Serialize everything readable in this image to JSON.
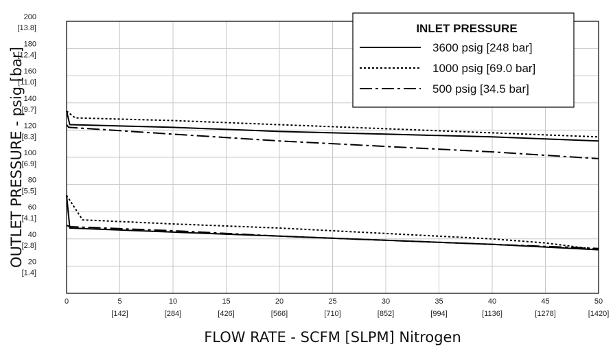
{
  "chart_data": {
    "type": "line",
    "xlabel": "FLOW RATE - SCFM [SLPM] Nitrogen",
    "ylabel": "OUTLET PRESSURE - psig [bar]",
    "xlim": [
      0,
      50
    ],
    "ylim": [
      0,
      200
    ],
    "x_ticks": [
      {
        "value": 0,
        "label": "0",
        "sub": ""
      },
      {
        "value": 5,
        "label": "5",
        "sub": "[142]"
      },
      {
        "value": 10,
        "label": "10",
        "sub": "[284]"
      },
      {
        "value": 15,
        "label": "15",
        "sub": "[426]"
      },
      {
        "value": 20,
        "label": "20",
        "sub": "[566]"
      },
      {
        "value": 25,
        "label": "25",
        "sub": "[710]"
      },
      {
        "value": 30,
        "label": "30",
        "sub": "[852]"
      },
      {
        "value": 35,
        "label": "35",
        "sub": "[994]"
      },
      {
        "value": 40,
        "label": "40",
        "sub": "[1136]"
      },
      {
        "value": 45,
        "label": "45",
        "sub": "[1278]"
      },
      {
        "value": 50,
        "label": "50",
        "sub": "[1420]"
      }
    ],
    "y_ticks": [
      {
        "value": 20,
        "label": "20",
        "sub": "[1.4]"
      },
      {
        "value": 40,
        "label": "40",
        "sub": "[2.8]"
      },
      {
        "value": 60,
        "label": "60",
        "sub": "[4.1]"
      },
      {
        "value": 80,
        "label": "80",
        "sub": "[5.5]"
      },
      {
        "value": 100,
        "label": "100",
        "sub": "[6.9]"
      },
      {
        "value": 120,
        "label": "120",
        "sub": "[8.3]"
      },
      {
        "value": 140,
        "label": "140",
        "sub": "[9.7]"
      },
      {
        "value": 160,
        "label": "160",
        "sub": "[11.0]"
      },
      {
        "value": 180,
        "label": "180",
        "sub": "[12.4]"
      },
      {
        "value": 200,
        "label": "200",
        "sub": "[13.8]"
      }
    ],
    "grid": true,
    "legend": {
      "title": "INLET PRESSURE",
      "position": "top-right",
      "entries": [
        {
          "label": "3600 psig [248 bar]",
          "style": "solid"
        },
        {
          "label": "1000 psig [69.0 bar]",
          "style": "dotted"
        },
        {
          "label": "500 psig [34.5 bar]",
          "style": "dashdot"
        }
      ]
    },
    "series": [
      {
        "style": "solid",
        "group": "high",
        "x": [
          0,
          0.3,
          10,
          20,
          30,
          40,
          50
        ],
        "y": [
          134,
          124,
          122,
          119,
          117,
          115,
          112
        ]
      },
      {
        "style": "dotted",
        "group": "high",
        "x": [
          0,
          0.8,
          10,
          20,
          30,
          40,
          50
        ],
        "y": [
          134,
          129,
          127,
          124,
          121,
          118,
          115
        ]
      },
      {
        "style": "dashdot",
        "group": "high",
        "x": [
          0,
          0.2,
          10,
          20,
          30,
          40,
          50
        ],
        "y": [
          124,
          122,
          117,
          112,
          108,
          104,
          99
        ]
      },
      {
        "style": "solid",
        "group": "low",
        "x": [
          0,
          0.3,
          10,
          20,
          30,
          40,
          50
        ],
        "y": [
          72,
          48,
          45,
          42,
          39,
          36,
          32
        ]
      },
      {
        "style": "dotted",
        "group": "low",
        "x": [
          0,
          1.5,
          10,
          20,
          30,
          40,
          45,
          50
        ],
        "y": [
          72,
          54,
          51,
          48,
          44,
          40,
          37,
          32
        ]
      },
      {
        "style": "dashdot",
        "group": "low",
        "x": [
          0,
          0.3,
          10,
          20,
          30,
          40,
          50
        ],
        "y": [
          50,
          49,
          46,
          42,
          39,
          36,
          33
        ]
      }
    ]
  }
}
